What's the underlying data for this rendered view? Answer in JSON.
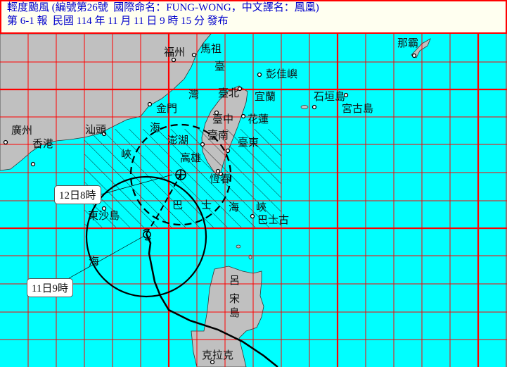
{
  "header": {
    "line1": "輕度颱風 (編號第26號  國際命名：FUNG-WONG，中文譯名：鳳凰)",
    "line2": "第 6-1 報  民國 114 年 11 月 11 日 9 時 15 分 發布"
  },
  "colors": {
    "sea": "#00ffff",
    "land": "#c0c0c0",
    "grid": "#ff0000",
    "header_text": "#0000cc",
    "border": "#ff0000"
  },
  "map": {
    "places": [
      "福州",
      "馬祖",
      "臺",
      "彭佳嶼",
      "灣",
      "臺北",
      "宜蘭",
      "石垣島",
      "宮古島",
      "金門",
      "臺中",
      "花蓮",
      "廣州",
      "汕頭",
      "海",
      "香港",
      "澎湖",
      "臺南",
      "臺東",
      "峽",
      "高雄",
      "恆春",
      "那霸",
      "東沙島",
      "巴",
      "士",
      "海",
      "峽",
      "巴士古",
      "海",
      "呂",
      "宋",
      "島",
      "克拉克"
    ],
    "labels": {
      "current_time": "11日9時",
      "forecast_time": "12日8時"
    },
    "icons": {
      "current": "typhoon-symbol-icon",
      "forecast": "forecast-center-icon"
    }
  }
}
